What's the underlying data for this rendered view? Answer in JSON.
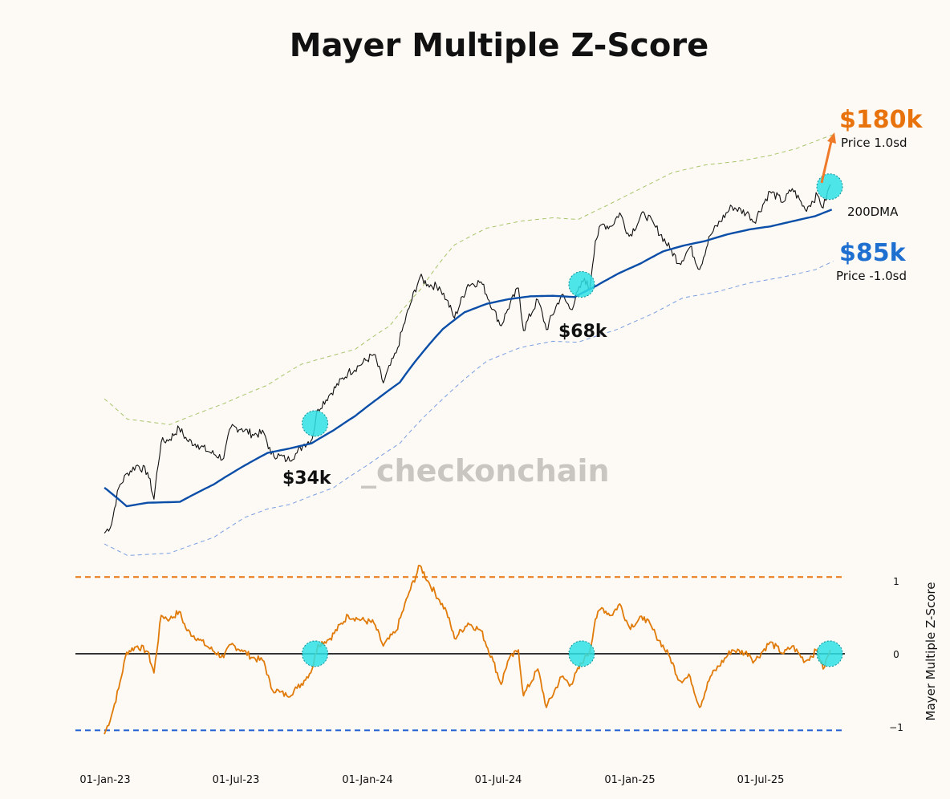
{
  "chart_data": [
    {
      "type": "line",
      "title": "Mayer Multiple Z-Score",
      "panel": "price",
      "y_scale": "log",
      "ylim": [
        14000,
        190000
      ],
      "x_range": [
        "2022-12-28",
        "2025-11-01"
      ],
      "series": [
        {
          "name": "Price",
          "color": "#111111",
          "points": [
            [
              "2022-12-31",
              16500
            ],
            [
              "2023-01-10",
              17400
            ],
            [
              "2023-01-20",
              21500
            ],
            [
              "2023-02-01",
              23400
            ],
            [
              "2023-02-15",
              24500
            ],
            [
              "2023-03-01",
              23500
            ],
            [
              "2023-03-10",
              20100
            ],
            [
              "2023-03-20",
              28000
            ],
            [
              "2023-04-01",
              28500
            ],
            [
              "2023-04-14",
              30400
            ],
            [
              "2023-04-25",
              28300
            ],
            [
              "2023-05-10",
              27600
            ],
            [
              "2023-05-25",
              26500
            ],
            [
              "2023-06-15",
              25500
            ],
            [
              "2023-06-25",
              30500
            ],
            [
              "2023-07-10",
              30300
            ],
            [
              "2023-07-25",
              29300
            ],
            [
              "2023-08-10",
              29500
            ],
            [
              "2023-08-20",
              26100
            ],
            [
              "2023-09-01",
              25900
            ],
            [
              "2023-09-11",
              25200
            ],
            [
              "2023-09-25",
              26300
            ],
            [
              "2023-10-05",
              27700
            ],
            [
              "2023-10-16",
              28500
            ],
            [
              "2023-10-24",
              33900
            ],
            [
              "2023-11-10",
              37000
            ],
            [
              "2023-12-05",
              41900
            ],
            [
              "2023-12-20",
              43600
            ],
            [
              "2024-01-10",
              46600
            ],
            [
              "2024-01-23",
              39500
            ],
            [
              "2024-02-10",
              47000
            ],
            [
              "2024-02-28",
              61000
            ],
            [
              "2024-03-14",
              73000
            ],
            [
              "2024-03-25",
              70000
            ],
            [
              "2024-04-10",
              69000
            ],
            [
              "2024-04-20",
              64000
            ],
            [
              "2024-05-01",
              57500
            ],
            [
              "2024-05-20",
              70000
            ],
            [
              "2024-06-07",
              71000
            ],
            [
              "2024-06-24",
              60500
            ],
            [
              "2024-07-05",
              55000
            ],
            [
              "2024-07-14",
              60500
            ],
            [
              "2024-07-29",
              68500
            ],
            [
              "2024-08-05",
              53500
            ],
            [
              "2024-08-25",
              64000
            ],
            [
              "2024-09-06",
              53800
            ],
            [
              "2024-09-27",
              65800
            ],
            [
              "2024-10-10",
              60500
            ],
            [
              "2024-10-29",
              72500
            ],
            [
              "2024-11-05",
              67800
            ],
            [
              "2024-11-13",
              90000
            ],
            [
              "2024-11-22",
              99000
            ],
            [
              "2024-12-05",
              98000
            ],
            [
              "2024-12-17",
              106000
            ],
            [
              "2024-12-30",
              92500
            ],
            [
              "2025-01-20",
              106000
            ],
            [
              "2025-02-05",
              97500
            ],
            [
              "2025-02-25",
              86000
            ],
            [
              "2025-03-10",
              79000
            ],
            [
              "2025-03-25",
              87000
            ],
            [
              "2025-04-07",
              76300
            ],
            [
              "2025-04-22",
              93000
            ],
            [
              "2025-05-22",
              110000
            ],
            [
              "2025-06-15",
              105000
            ],
            [
              "2025-06-22",
              100500
            ],
            [
              "2025-07-14",
              120000
            ],
            [
              "2025-08-02",
              113000
            ],
            [
              "2025-08-14",
              122000
            ],
            [
              "2025-09-01",
              108000
            ],
            [
              "2025-09-18",
              117500
            ],
            [
              "2025-09-26",
              109000
            ],
            [
              "2025-10-06",
              125000
            ]
          ]
        },
        {
          "name": "200DMA",
          "color": "#0a4ea8",
          "points": [
            [
              "2022-12-31",
              21500
            ],
            [
              "2023-01-31",
              19300
            ],
            [
              "2023-03-01",
              19700
            ],
            [
              "2023-04-15",
              19800
            ],
            [
              "2023-06-01",
              21900
            ],
            [
              "2023-07-15",
              24500
            ],
            [
              "2023-08-15",
              26300
            ],
            [
              "2023-09-15",
              27000
            ],
            [
              "2023-10-15",
              27800
            ],
            [
              "2023-11-15",
              30000
            ],
            [
              "2023-12-15",
              32600
            ],
            [
              "2024-01-15",
              36000
            ],
            [
              "2024-02-15",
              39600
            ],
            [
              "2024-03-15",
              46500
            ],
            [
              "2024-04-15",
              54000
            ],
            [
              "2024-05-15",
              59500
            ],
            [
              "2024-06-15",
              62500
            ],
            [
              "2024-07-15",
              64200
            ],
            [
              "2024-08-15",
              65300
            ],
            [
              "2024-09-15",
              65500
            ],
            [
              "2024-10-15",
              65000
            ],
            [
              "2024-11-15",
              69500
            ],
            [
              "2024-12-15",
              74500
            ],
            [
              "2025-01-15",
              79000
            ],
            [
              "2025-02-15",
              84700
            ],
            [
              "2025-03-15",
              87600
            ],
            [
              "2025-04-15",
              90000
            ],
            [
              "2025-05-15",
              93500
            ],
            [
              "2025-06-15",
              96200
            ],
            [
              "2025-07-15",
              98000
            ],
            [
              "2025-08-15",
              101000
            ],
            [
              "2025-09-15",
              104000
            ],
            [
              "2025-10-08",
              108000
            ]
          ]
        },
        {
          "name": "Price 1.0sd",
          "color": "#a8c46a",
          "dash": true,
          "points": [
            [
              "2022-12-31",
              36000
            ],
            [
              "2023-02-01",
              32000
            ],
            [
              "2023-04-01",
              31000
            ],
            [
              "2023-06-15",
              35000
            ],
            [
              "2023-08-15",
              39000
            ],
            [
              "2023-10-01",
              44000
            ],
            [
              "2023-12-15",
              48000
            ],
            [
              "2024-02-01",
              55000
            ],
            [
              "2024-03-15",
              68000
            ],
            [
              "2024-05-01",
              88000
            ],
            [
              "2024-06-15",
              97000
            ],
            [
              "2024-08-01",
              101000
            ],
            [
              "2024-09-15",
              103000
            ],
            [
              "2024-10-20",
              102000
            ],
            [
              "2024-12-01",
              111000
            ],
            [
              "2025-01-15",
              122000
            ],
            [
              "2025-03-01",
              134000
            ],
            [
              "2025-04-15",
              140000
            ],
            [
              "2025-06-01",
              143000
            ],
            [
              "2025-07-15",
              148000
            ],
            [
              "2025-08-20",
              154000
            ],
            [
              "2025-10-10",
              167000
            ]
          ]
        },
        {
          "name": "Price -1.0sd",
          "color": "#7a9ee0",
          "dash": true,
          "points": [
            [
              "2022-12-31",
              15500
            ],
            [
              "2023-02-01",
              14500
            ],
            [
              "2023-04-01",
              14700
            ],
            [
              "2023-06-01",
              16100
            ],
            [
              "2023-07-15",
              18100
            ],
            [
              "2023-08-15",
              19000
            ],
            [
              "2023-09-15",
              19500
            ],
            [
              "2023-11-15",
              21500
            ],
            [
              "2024-01-01",
              24500
            ],
            [
              "2024-02-15",
              27800
            ],
            [
              "2024-04-15",
              36000
            ],
            [
              "2024-06-15",
              44800
            ],
            [
              "2024-08-01",
              48500
            ],
            [
              "2024-09-15",
              50300
            ],
            [
              "2024-10-20",
              50000
            ],
            [
              "2024-12-15",
              54000
            ],
            [
              "2025-02-01",
              59000
            ],
            [
              "2025-03-15",
              64700
            ],
            [
              "2025-05-01",
              67000
            ],
            [
              "2025-06-15",
              70500
            ],
            [
              "2025-08-01",
              73000
            ],
            [
              "2025-09-15",
              76200
            ],
            [
              "2025-10-10",
              80000
            ]
          ]
        }
      ],
      "highlights": [
        "2023-10-20",
        "2024-10-25",
        "2025-10-05"
      ],
      "annotations": [
        {
          "text": "$180k",
          "subtext": "Price 1.0sd",
          "color": "#e8720c"
        },
        {
          "text": "200DMA"
        },
        {
          "text": "$85k",
          "subtext": "Price -1.0sd",
          "color": "#1f6fd1"
        },
        {
          "text": "$34k"
        },
        {
          "text": "$68k"
        }
      ],
      "watermark": "_checkonchain"
    },
    {
      "type": "line",
      "panel": "zscore",
      "ylabel": "Mayer Multiple Z-Score",
      "ylim": [
        -1.1,
        1.15
      ],
      "yticks": [
        1,
        0,
        -1
      ],
      "ytick_labels": [
        "1",
        "0",
        "−1"
      ],
      "reference_lines": [
        {
          "y": 1,
          "color": "#e8720c",
          "dash": true
        },
        {
          "y": 0,
          "color": "#111111",
          "dash": false
        },
        {
          "y": -1,
          "color": "#1f5fd1",
          "dash": true
        }
      ],
      "xtick_labels": [
        "01-Jan-23",
        "01-Jul-23",
        "01-Jan-24",
        "01-Jul-24",
        "01-Jan-25",
        "01-Jul-25"
      ],
      "xticks": [
        "2023-01-01",
        "2023-07-01",
        "2024-01-01",
        "2024-07-01",
        "2025-01-01",
        "2025-07-01"
      ],
      "series": [
        {
          "name": "Mayer Multiple Z-Score",
          "color": "#e07a08",
          "points": [
            [
              "2022-12-31",
              -1.05
            ],
            [
              "2023-01-10",
              -0.8
            ],
            [
              "2023-01-20",
              -0.45
            ],
            [
              "2023-01-31",
              0.02
            ],
            [
              "2023-02-15",
              0.1
            ],
            [
              "2023-03-01",
              0.03
            ],
            [
              "2023-03-10",
              -0.25
            ],
            [
              "2023-03-20",
              0.5
            ],
            [
              "2023-04-01",
              0.45
            ],
            [
              "2023-04-14",
              0.55
            ],
            [
              "2023-04-25",
              0.3
            ],
            [
              "2023-05-10",
              0.2
            ],
            [
              "2023-05-25",
              0.08
            ],
            [
              "2023-06-15",
              -0.05
            ],
            [
              "2023-06-25",
              0.12
            ],
            [
              "2023-07-10",
              0.05
            ],
            [
              "2023-07-25",
              -0.05
            ],
            [
              "2023-08-10",
              -0.1
            ],
            [
              "2023-08-20",
              -0.45
            ],
            [
              "2023-09-01",
              -0.5
            ],
            [
              "2023-09-11",
              -0.55
            ],
            [
              "2023-09-25",
              -0.45
            ],
            [
              "2023-10-05",
              -0.35
            ],
            [
              "2023-10-16",
              -0.2
            ],
            [
              "2023-10-24",
              0.12
            ],
            [
              "2023-11-10",
              0.2
            ],
            [
              "2023-12-05",
              0.5
            ],
            [
              "2023-12-20",
              0.45
            ],
            [
              "2024-01-10",
              0.4
            ],
            [
              "2024-01-23",
              0.1
            ],
            [
              "2024-02-10",
              0.3
            ],
            [
              "2024-02-28",
              0.8
            ],
            [
              "2024-03-14",
              1.15
            ],
            [
              "2024-03-25",
              0.95
            ],
            [
              "2024-04-10",
              0.7
            ],
            [
              "2024-04-20",
              0.55
            ],
            [
              "2024-05-01",
              0.2
            ],
            [
              "2024-05-20",
              0.4
            ],
            [
              "2024-06-07",
              0.3
            ],
            [
              "2024-06-24",
              -0.1
            ],
            [
              "2024-07-05",
              -0.4
            ],
            [
              "2024-07-14",
              -0.1
            ],
            [
              "2024-07-29",
              0.05
            ],
            [
              "2024-08-05",
              -0.55
            ],
            [
              "2024-08-25",
              -0.2
            ],
            [
              "2024-09-06",
              -0.7
            ],
            [
              "2024-09-27",
              -0.3
            ],
            [
              "2024-10-10",
              -0.4
            ],
            [
              "2024-10-29",
              -0.05
            ],
            [
              "2024-11-05",
              0.02
            ],
            [
              "2024-11-13",
              0.45
            ],
            [
              "2024-11-22",
              0.6
            ],
            [
              "2024-12-05",
              0.5
            ],
            [
              "2024-12-17",
              0.65
            ],
            [
              "2024-12-30",
              0.35
            ],
            [
              "2025-01-20",
              0.48
            ],
            [
              "2025-02-05",
              0.25
            ],
            [
              "2025-02-25",
              -0.05
            ],
            [
              "2025-03-10",
              -0.35
            ],
            [
              "2025-03-25",
              -0.3
            ],
            [
              "2025-04-07",
              -0.7
            ],
            [
              "2025-04-22",
              -0.3
            ],
            [
              "2025-05-22",
              0.05
            ],
            [
              "2025-06-15",
              0.0
            ],
            [
              "2025-06-22",
              -0.1
            ],
            [
              "2025-07-14",
              0.15
            ],
            [
              "2025-08-02",
              0.0
            ],
            [
              "2025-08-14",
              0.1
            ],
            [
              "2025-09-01",
              -0.1
            ],
            [
              "2025-09-18",
              0.05
            ],
            [
              "2025-09-26",
              -0.2
            ],
            [
              "2025-10-06",
              0.05
            ]
          ]
        }
      ],
      "highlights": [
        "2023-10-20",
        "2024-10-25",
        "2025-10-05"
      ]
    }
  ]
}
